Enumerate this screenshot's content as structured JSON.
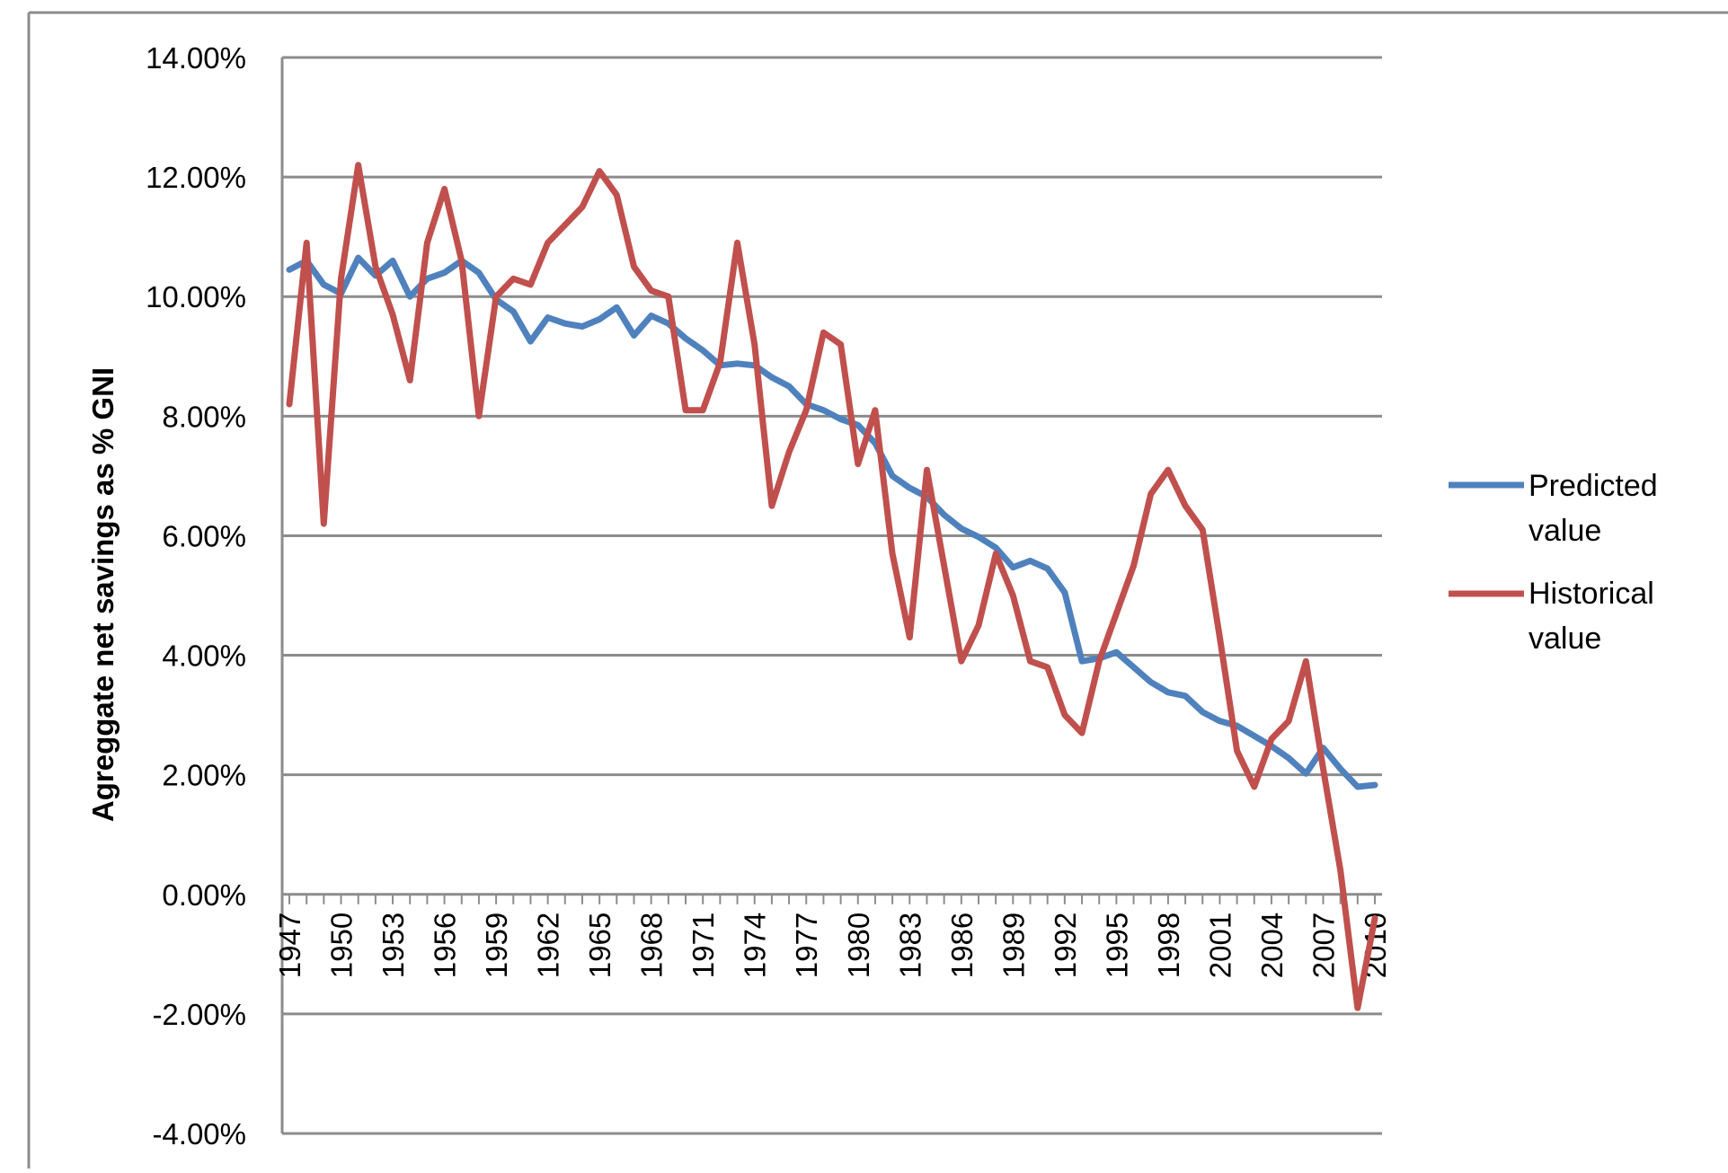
{
  "chart_data": {
    "type": "line",
    "title": "",
    "xlabel": "",
    "ylabel": "Agreggate net savings as % GNI",
    "ylim": [
      -0.04,
      0.14
    ],
    "y_ticks": [
      -0.04,
      -0.02,
      0.0,
      0.02,
      0.04,
      0.06,
      0.08,
      0.1,
      0.12,
      0.14
    ],
    "y_tick_labels": [
      "-4.00%",
      "-2.00%",
      "0.00%",
      "2.00%",
      "4.00%",
      "6.00%",
      "8.00%",
      "10.00%",
      "12.00%",
      "14.00%"
    ],
    "x": [
      1947,
      1948,
      1949,
      1950,
      1951,
      1952,
      1953,
      1954,
      1955,
      1956,
      1957,
      1958,
      1959,
      1960,
      1961,
      1962,
      1963,
      1964,
      1965,
      1966,
      1967,
      1968,
      1969,
      1970,
      1971,
      1972,
      1973,
      1974,
      1975,
      1976,
      1977,
      1978,
      1979,
      1980,
      1981,
      1982,
      1983,
      1984,
      1985,
      1986,
      1987,
      1988,
      1989,
      1990,
      1991,
      1992,
      1993,
      1994,
      1995,
      1996,
      1997,
      1998,
      1999,
      2000,
      2001,
      2002,
      2003,
      2004,
      2005,
      2006,
      2007,
      2008,
      2009,
      2010
    ],
    "x_tick_labels": [
      "1947",
      "1950",
      "1953",
      "1956",
      "1959",
      "1962",
      "1965",
      "1968",
      "1971",
      "1974",
      "1977",
      "1980",
      "1983",
      "1986",
      "1989",
      "1992",
      "1995",
      "1998",
      "2001",
      "2004",
      "2007",
      "2010"
    ],
    "grid": true,
    "legend": "right",
    "series": [
      {
        "name": "Predicted value",
        "color": "#4F81BD",
        "values": [
          0.1045,
          0.106,
          0.102,
          0.1005,
          0.1065,
          0.1035,
          0.106,
          0.1,
          0.103,
          0.104,
          0.106,
          0.104,
          0.0995,
          0.0975,
          0.0925,
          0.0965,
          0.0955,
          0.095,
          0.0962,
          0.0982,
          0.0935,
          0.0968,
          0.0955,
          0.093,
          0.091,
          0.0885,
          0.0888,
          0.0885,
          0.0865,
          0.085,
          0.082,
          0.081,
          0.0795,
          0.0785,
          0.0755,
          0.07,
          0.068,
          0.0665,
          0.0635,
          0.0612,
          0.0598,
          0.058,
          0.0547,
          0.0558,
          0.0545,
          0.0505,
          0.039,
          0.0395,
          0.0405,
          0.038,
          0.0355,
          0.0338,
          0.0332,
          0.0305,
          0.029,
          0.0282,
          0.0265,
          0.0248,
          0.0228,
          0.0202,
          0.0245,
          0.021,
          0.018,
          0.0183
        ]
      },
      {
        "name": "Historical value",
        "color": "#C0504D",
        "values": [
          0.082,
          0.109,
          0.062,
          0.103,
          0.122,
          0.105,
          0.097,
          0.086,
          0.109,
          0.118,
          0.106,
          0.08,
          0.1,
          0.103,
          0.102,
          0.109,
          0.112,
          0.115,
          0.121,
          0.117,
          0.105,
          0.101,
          0.1,
          0.081,
          0.081,
          0.089,
          0.109,
          0.092,
          0.065,
          0.074,
          0.081,
          0.094,
          0.092,
          0.072,
          0.081,
          0.057,
          0.043,
          0.071,
          0.055,
          0.039,
          0.045,
          0.057,
          0.05,
          0.039,
          0.038,
          0.03,
          0.027,
          0.039,
          0.047,
          0.055,
          0.067,
          0.071,
          0.065,
          0.061,
          0.043,
          0.024,
          0.018,
          0.026,
          0.029,
          0.039,
          0.021,
          0.004,
          -0.019,
          -0.004
        ]
      }
    ]
  }
}
